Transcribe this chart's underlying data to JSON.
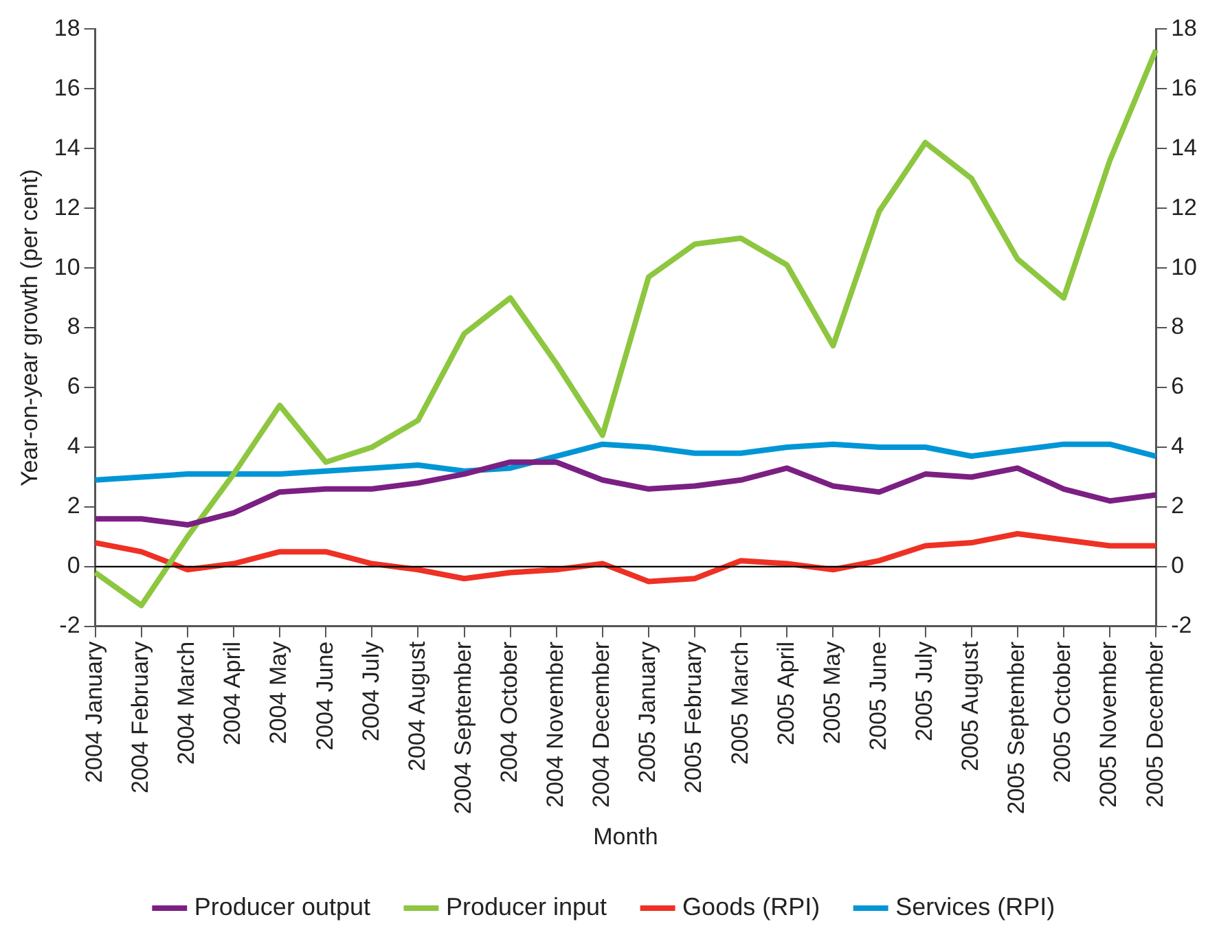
{
  "chart_data": {
    "type": "line",
    "xlabel": "Month",
    "ylabel": "Year-on-year growth (per cent)",
    "categories": [
      "2004 January",
      "2004 February",
      "2004 March",
      "2004 April",
      "2004 May",
      "2004 June",
      "2004 July",
      "2004 August",
      "2004 September",
      "2004 October",
      "2004 November",
      "2004 December",
      "2005 January",
      "2005 February",
      "2005 March",
      "2005 April",
      "2005 May",
      "2005 June",
      "2005 July",
      "2005 August",
      "2005 September",
      "2005 October",
      "2005 November",
      "2005 December"
    ],
    "series": [
      {
        "name": "Producer output",
        "color": "#7b1f82",
        "values": [
          1.6,
          1.6,
          1.4,
          1.8,
          2.5,
          2.6,
          2.6,
          2.8,
          3.1,
          3.5,
          3.5,
          2.9,
          2.6,
          2.7,
          2.9,
          3.3,
          2.7,
          2.5,
          3.1,
          3.0,
          3.3,
          2.6,
          2.2,
          2.4
        ]
      },
      {
        "name": "Producer input",
        "color": "#8dc63f",
        "values": [
          -0.2,
          -1.3,
          1.0,
          3.1,
          5.4,
          3.5,
          4.0,
          4.9,
          7.8,
          9.0,
          6.8,
          4.4,
          9.7,
          10.8,
          11.0,
          10.1,
          7.4,
          11.9,
          14.2,
          13.0,
          10.3,
          9.0,
          13.6,
          17.3
        ]
      },
      {
        "name": "Goods (RPI)",
        "color": "#ee3124",
        "values": [
          0.8,
          0.5,
          -0.1,
          0.1,
          0.5,
          0.5,
          0.1,
          -0.1,
          -0.4,
          -0.2,
          -0.1,
          0.1,
          -0.5,
          -0.4,
          0.2,
          0.1,
          -0.1,
          0.2,
          0.7,
          0.8,
          1.1,
          0.9,
          0.7,
          0.7
        ]
      },
      {
        "name": "Services (RPI)",
        "color": "#0096d6",
        "values": [
          2.9,
          3.0,
          3.1,
          3.1,
          3.1,
          3.2,
          3.3,
          3.4,
          3.2,
          3.3,
          3.7,
          4.1,
          4.0,
          3.8,
          3.8,
          4.0,
          4.1,
          4.0,
          4.0,
          3.7,
          3.9,
          4.1,
          4.1,
          3.7
        ]
      }
    ],
    "ylim": [
      -2,
      18
    ],
    "yticks": [
      -2,
      0,
      2,
      4,
      6,
      8,
      10,
      12,
      14,
      16,
      18
    ],
    "y2lim": [
      -2,
      18
    ],
    "y2ticks": [
      -2,
      0,
      2,
      4,
      6,
      8,
      10,
      12,
      14,
      16,
      18
    ],
    "ref_lines": [
      {
        "axis": "y",
        "value": 0,
        "color": "#000000"
      }
    ],
    "grid": false,
    "legend": "bottom",
    "marker": "none",
    "line_style": "solid"
  }
}
